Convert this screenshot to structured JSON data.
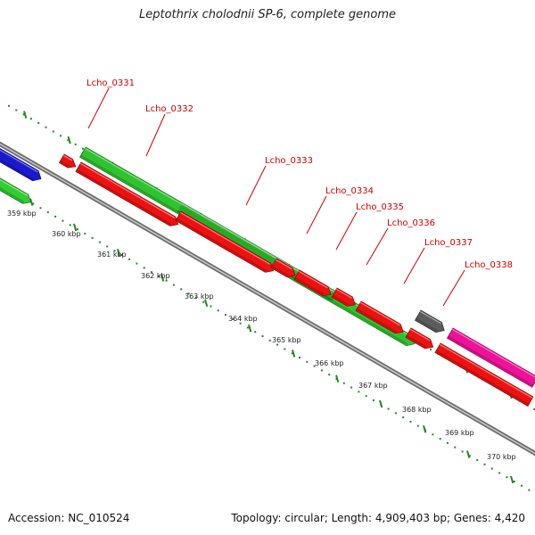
{
  "title": "Leptothrix cholodnii SP-6, complete genome",
  "footer": {
    "accession": "Accession: NC_010524",
    "summary": "Topology: circular; Length: 4,909,403 bp; Genes: 4,420"
  },
  "ticks": [
    "359 kbp",
    "360 kbp",
    "361 kbp",
    "362 kbp",
    "363 kbp",
    "364 kbp",
    "365 kbp",
    "366 kbp",
    "367 kbp",
    "368 kbp",
    "369 kbp",
    "370 kbp"
  ],
  "genes": [
    "Lcho_0331",
    "Lcho_0332",
    "Lcho_0333",
    "Lcho_0334",
    "Lcho_0335",
    "Lcho_0336",
    "Lcho_0337",
    "Lcho_0338"
  ],
  "colors": {
    "forward_cds": "#33cc33",
    "reverse_cds": "#ee1111",
    "other_blue": "#1111dd",
    "other_gray": "#666666",
    "other_magenta": "#ee1199",
    "backbone": "#8c8c8c",
    "ticks": "#228822",
    "labels": "#cc0000"
  }
}
